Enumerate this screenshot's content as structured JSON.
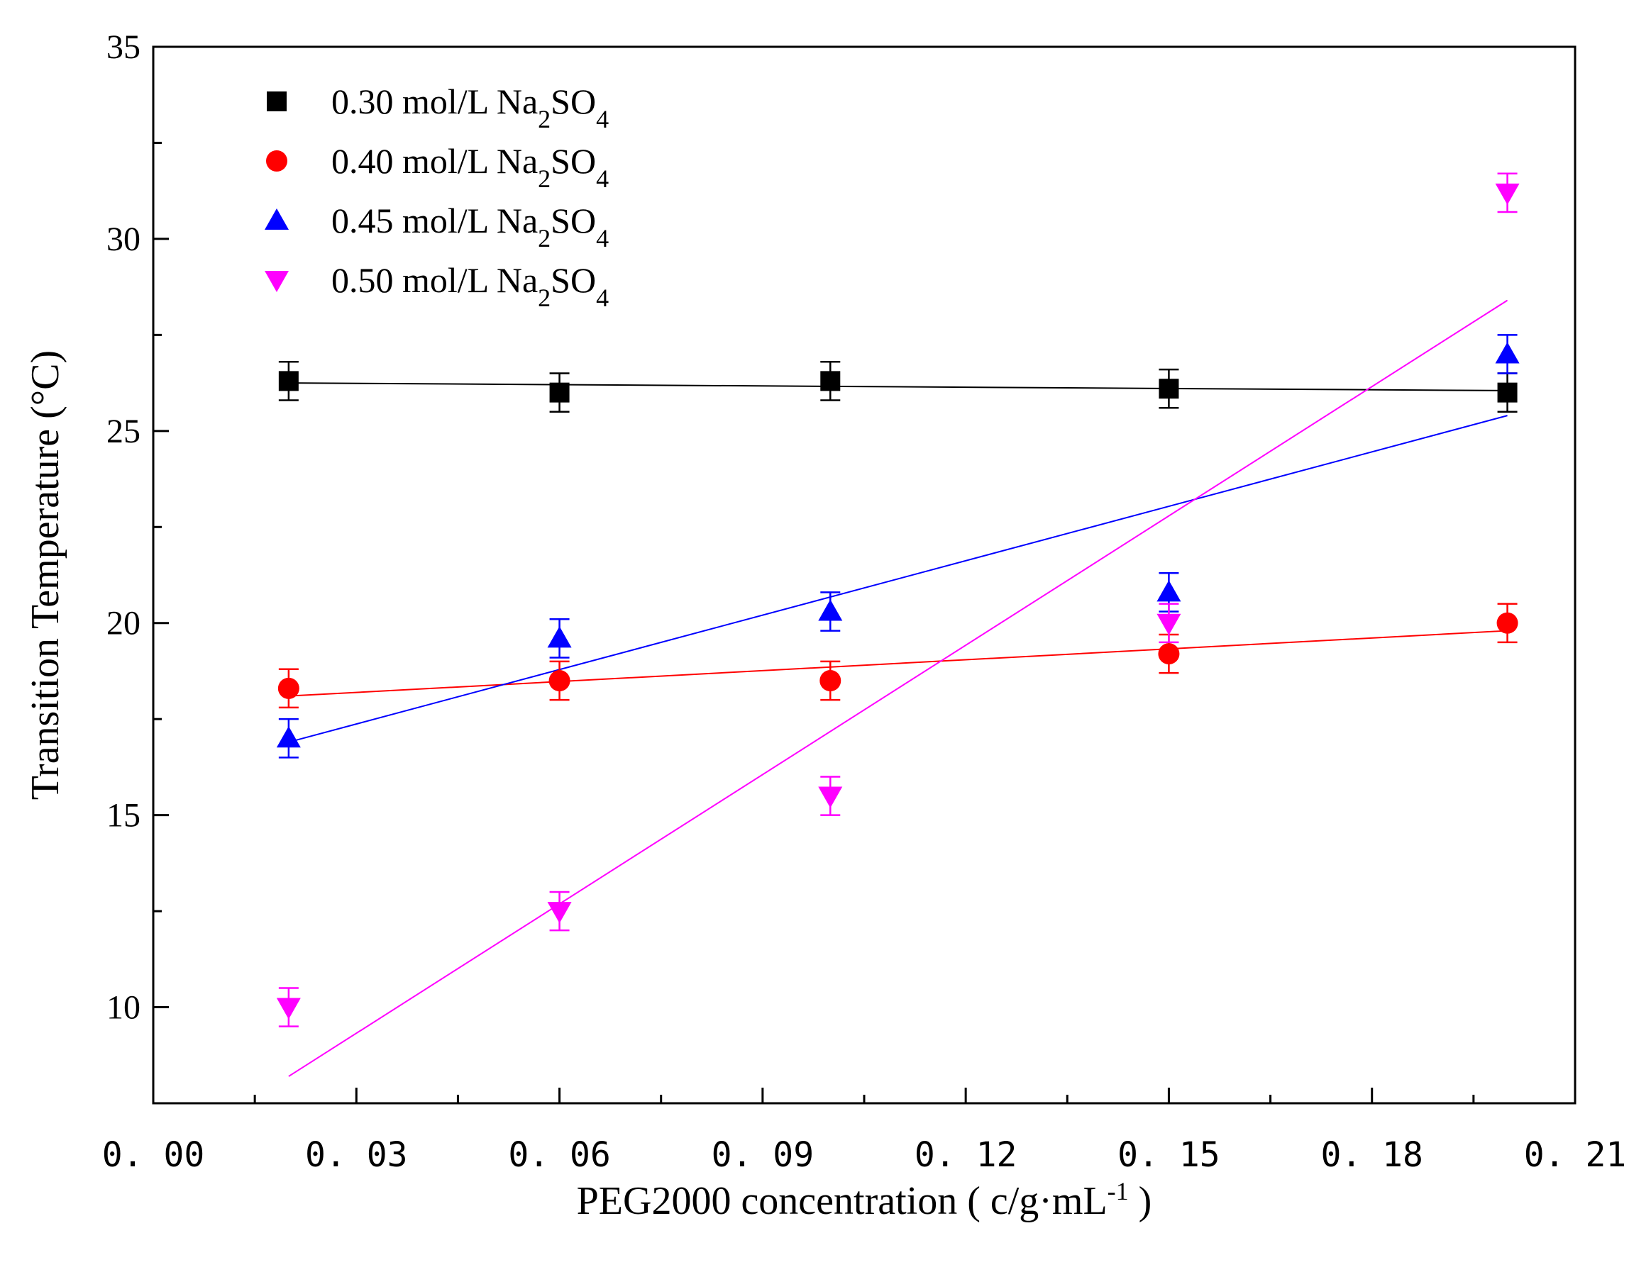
{
  "chart_data": {
    "type": "scatter",
    "title": "",
    "xlabel": {
      "text": "PEG2000 concentration ( c/g·mL",
      "sup": "-1",
      "close": " )"
    },
    "ylabel": "Transition Temperature (°C)",
    "xlim": [
      0.0,
      0.21
    ],
    "ylim": [
      7.5,
      35
    ],
    "x_ticks": [
      0.0,
      0.03,
      0.06,
      0.09,
      0.12,
      0.15,
      0.18,
      0.21
    ],
    "x_tick_labels": [
      "0. 00",
      "0. 03",
      "0. 06",
      "0. 09",
      "0. 12",
      "0. 15",
      "0. 18",
      "0. 21"
    ],
    "y_ticks": [
      10,
      15,
      20,
      25,
      30,
      35
    ],
    "y_tick_labels": [
      "10",
      "15",
      "20",
      "25",
      "30",
      "35"
    ],
    "grid": false,
    "legend_position": "top-left",
    "x": [
      0.02,
      0.06,
      0.1,
      0.15,
      0.2
    ],
    "series": [
      {
        "name": "0.30 mol/L Na2SO4",
        "label": {
          "prefix": "0.30 mol/L Na",
          "sub1": "2",
          "mid": "SO",
          "sub2": "4"
        },
        "marker": "square",
        "color": "#000000",
        "values": [
          26.3,
          26.0,
          26.3,
          26.1,
          26.0
        ],
        "errors": [
          0.5,
          0.5,
          0.5,
          0.5,
          0.5
        ],
        "fit": {
          "x": [
            0.02,
            0.2
          ],
          "y": [
            26.25,
            26.05
          ]
        }
      },
      {
        "name": "0.40 mol/L Na2SO4",
        "label": {
          "prefix": "0.40 mol/L Na",
          "sub1": "2",
          "mid": "SO",
          "sub2": "4"
        },
        "marker": "circle",
        "color": "#ff0000",
        "values": [
          18.3,
          18.5,
          18.5,
          19.2,
          20.0
        ],
        "errors": [
          0.5,
          0.5,
          0.5,
          0.5,
          0.5
        ],
        "fit": {
          "x": [
            0.02,
            0.2
          ],
          "y": [
            18.1,
            19.8
          ]
        }
      },
      {
        "name": "0.45 mol/L Na2SO4",
        "label": {
          "prefix": "0.45 mol/L Na",
          "sub1": "2",
          "mid": "SO",
          "sub2": "4"
        },
        "marker": "triangle-up",
        "color": "#0000ff",
        "values": [
          17.0,
          19.6,
          20.3,
          20.8,
          27.0
        ],
        "errors": [
          0.5,
          0.5,
          0.5,
          0.5,
          0.5
        ],
        "fit": {
          "x": [
            0.02,
            0.2
          ],
          "y": [
            16.9,
            25.4
          ]
        }
      },
      {
        "name": "0.50 mol/L Na2SO4",
        "label": {
          "prefix": "0.50 mol/L Na",
          "sub1": "2",
          "mid": "SO",
          "sub2": "4"
        },
        "marker": "triangle-down",
        "color": "#ff00ff",
        "values": [
          10.0,
          12.5,
          15.5,
          20.0,
          31.2
        ],
        "errors": [
          0.5,
          0.5,
          0.5,
          0.5,
          0.5
        ],
        "fit": {
          "x": [
            0.02,
            0.2
          ],
          "y": [
            8.2,
            28.4
          ]
        }
      }
    ]
  }
}
